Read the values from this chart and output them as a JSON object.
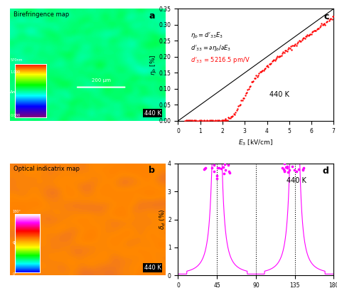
{
  "panel_c": {
    "title_label": "c",
    "xlabel": "E₃ [kV/cm]",
    "ylabel": "η₆ [%]",
    "xlim": [
      0,
      7
    ],
    "ylim": [
      0,
      0.35
    ],
    "xticks": [
      0,
      1,
      2,
      3,
      4,
      5,
      6,
      7
    ],
    "yticks": [
      0.0,
      0.05,
      0.1,
      0.15,
      0.2,
      0.25,
      0.3,
      0.35
    ],
    "line_x": [
      0,
      7
    ],
    "line_y": [
      0,
      0.35
    ],
    "temp_label": "440 K",
    "dot_color": "#ff0000",
    "line_color": "#000000"
  },
  "panel_d": {
    "title_label": "d",
    "xlim": [
      0,
      180
    ],
    "ylim": [
      0,
      4
    ],
    "xticks": [
      0,
      45,
      90,
      135,
      180
    ],
    "yticks": [
      0,
      1,
      2,
      3,
      4
    ],
    "vlines": [
      45,
      90,
      135
    ],
    "temp_label": "440 K",
    "dot_color": "#ff00ff",
    "curve_color": "#ff00ff"
  },
  "figure_bg": "#ffffff",
  "colorbar_a_colors": [
    "#800080",
    "#0000ff",
    "#00ffff",
    "#00ff00",
    "#ffff00",
    "#ff0000"
  ],
  "colorbar_b_colors": [
    "#0000ff",
    "#00ffff",
    "#00ff00",
    "#ffff00",
    "#ff8800",
    "#ff0000",
    "#ff00ff",
    "#ffffff"
  ]
}
